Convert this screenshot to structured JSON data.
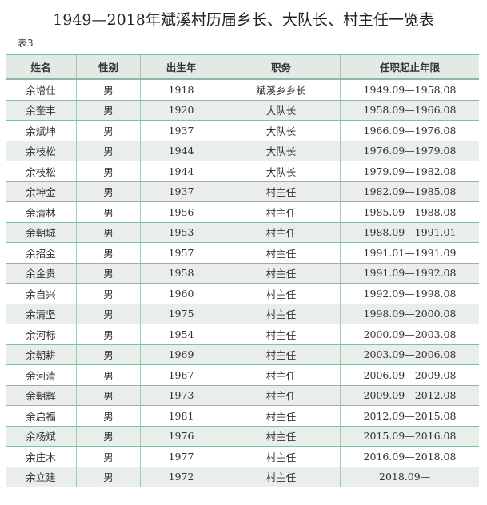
{
  "title": "1949—2018年斌溪村历届乡长、大队长、村主任一览表",
  "table_label": "表3",
  "headers": [
    "姓名",
    "性别",
    "出生年",
    "职务",
    "任职起止年限"
  ],
  "rows": [
    [
      "余增仕",
      "男",
      "1918",
      "斌溪乡乡长",
      "1949.09—1958.08"
    ],
    [
      "余奎丰",
      "男",
      "1920",
      "大队长",
      "1958.09—1966.08"
    ],
    [
      "余斌坤",
      "男",
      "1937",
      "大队长",
      "1966.09—1976.08"
    ],
    [
      "余枝松",
      "男",
      "1944",
      "大队长",
      "1976.09—1979.08"
    ],
    [
      "余枝松",
      "男",
      "1944",
      "大队长",
      "1979.09—1982.08"
    ],
    [
      "余坤金",
      "男",
      "1937",
      "村主任",
      "1982.09—1985.08"
    ],
    [
      "余清林",
      "男",
      "1956",
      "村主任",
      "1985.09—1988.08"
    ],
    [
      "余朝城",
      "男",
      "1953",
      "村主任",
      "1988.09—1991.01"
    ],
    [
      "余招金",
      "男",
      "1957",
      "村主任",
      "1991.01—1991.09"
    ],
    [
      "余金贵",
      "男",
      "1958",
      "村主任",
      "1991.09—1992.08"
    ],
    [
      "余自兴",
      "男",
      "1960",
      "村主任",
      "1992.09—1998.08"
    ],
    [
      "余清坚",
      "男",
      "1975",
      "村主任",
      "1998.09—2000.08"
    ],
    [
      "余河标",
      "男",
      "1954",
      "村主任",
      "2000.09—2003.08"
    ],
    [
      "余朝耕",
      "男",
      "1969",
      "村主任",
      "2003.09—2006.08"
    ],
    [
      "余河清",
      "男",
      "1967",
      "村主任",
      "2006.09—2009.08"
    ],
    [
      "余朝辉",
      "男",
      "1973",
      "村主任",
      "2009.09—2012.08"
    ],
    [
      "余启福",
      "男",
      "1981",
      "村主任",
      "2012.09—2015.08"
    ],
    [
      "余杨斌",
      "男",
      "1976",
      "村主任",
      "2015.09—2016.08"
    ],
    [
      "余庄木",
      "男",
      "1977",
      "村主任",
      "2016.09—2018.08"
    ],
    [
      "余立建",
      "男",
      "1972",
      "村主任",
      "2018.09—"
    ]
  ]
}
